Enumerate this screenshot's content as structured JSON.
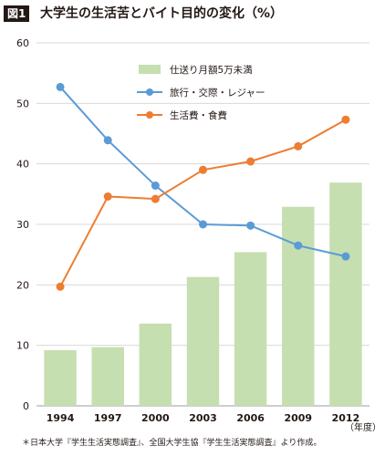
{
  "figure_label": "図1",
  "title": "大学生の生活苦とバイト目的の変化（%）",
  "note": "＊日本大学『学生生活実態調査』、全国大学生協『学生生活実態調査』より作成。",
  "x_unit": "（年度）",
  "colors": {
    "bar": "#c5dfb1",
    "line_travel": "#5b9bd5",
    "line_living": "#ed7d31",
    "grid": "#d9d9d9",
    "axis": "#9e9e9e"
  },
  "chart_data": {
    "type": "bar",
    "categories": [
      "1994",
      "1997",
      "2000",
      "2003",
      "2006",
      "2009",
      "2012"
    ],
    "ylim": [
      0,
      60
    ],
    "yticks": [
      "0",
      "10",
      "20",
      "30",
      "40",
      "50",
      "60"
    ],
    "grid": true,
    "legend_position": "top-right",
    "series": [
      {
        "name": "仕送り月額5万未満",
        "type": "bar",
        "values": [
          9.2,
          9.7,
          13.6,
          21.3,
          25.4,
          32.9,
          36.9
        ]
      },
      {
        "name": "旅行・交際・レジャー",
        "type": "line",
        "values": [
          52.7,
          43.9,
          36.4,
          30.0,
          29.8,
          26.5,
          24.7
        ]
      },
      {
        "name": "生活費・食費",
        "type": "line",
        "values": [
          19.7,
          34.6,
          34.2,
          39.0,
          40.4,
          42.9,
          47.3
        ]
      }
    ]
  }
}
